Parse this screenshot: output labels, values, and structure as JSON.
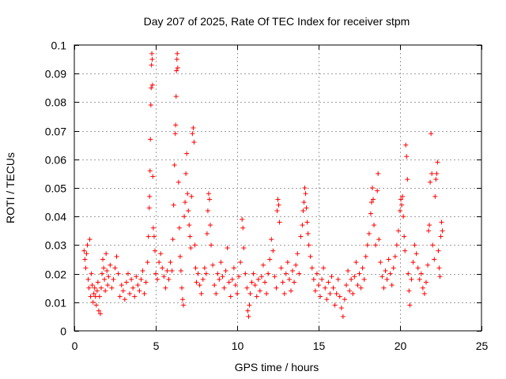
{
  "chart_data": {
    "type": "scatter",
    "title": "Day 207 of 2025, Rate Of TEC Index for receiver stpm",
    "xlabel": "GPS time / hours",
    "ylabel": "ROTI / TECUs",
    "xlim": [
      0,
      25
    ],
    "ylim": [
      0,
      0.1
    ],
    "x_ticks": [
      0,
      5,
      10,
      15,
      20,
      25
    ],
    "y_ticks": [
      0,
      0.01,
      0.02,
      0.03,
      0.04,
      0.05,
      0.06,
      0.07,
      0.08,
      0.09,
      0.1
    ],
    "x_tick_labels": [
      "0",
      "5",
      "10",
      "15",
      "20",
      "25"
    ],
    "y_tick_labels": [
      "0",
      "0.01",
      "0.02",
      "0.03",
      "0.04",
      "0.05",
      "0.06",
      "0.07",
      "0.08",
      "0.09",
      "0.1"
    ],
    "grid": true,
    "marker": "plus",
    "color": "#ff0000",
    "points": [
      [
        0.6,
        0.028
      ],
      [
        0.65,
        0.025
      ],
      [
        0.7,
        0.022
      ],
      [
        0.75,
        0.027
      ],
      [
        0.8,
        0.03
      ],
      [
        0.85,
        0.018
      ],
      [
        0.9,
        0.015
      ],
      [
        0.95,
        0.032
      ],
      [
        1.0,
        0.012
      ],
      [
        1.05,
        0.02
      ],
      [
        1.1,
        0.016
      ],
      [
        1.15,
        0.01
      ],
      [
        1.2,
        0.013
      ],
      [
        1.25,
        0.015
      ],
      [
        1.3,
        0.012
      ],
      [
        1.35,
        0.009
      ],
      [
        1.4,
        0.014
      ],
      [
        1.45,
        0.017
      ],
      [
        1.5,
        0.007
      ],
      [
        1.55,
        0.012
      ],
      [
        1.6,
        0.006
      ],
      [
        1.65,
        0.015
      ],
      [
        1.7,
        0.02
      ],
      [
        1.75,
        0.025
      ],
      [
        1.8,
        0.022
      ],
      [
        1.85,
        0.018
      ],
      [
        1.9,
        0.014
      ],
      [
        1.95,
        0.027
      ],
      [
        2.0,
        0.021
      ],
      [
        2.05,
        0.016
      ],
      [
        2.1,
        0.019
      ],
      [
        2.2,
        0.023
      ],
      [
        2.3,
        0.015
      ],
      [
        2.4,
        0.018
      ],
      [
        2.5,
        0.022
      ],
      [
        2.6,
        0.026
      ],
      [
        2.7,
        0.02
      ],
      [
        2.8,
        0.012
      ],
      [
        2.9,
        0.016
      ],
      [
        3.0,
        0.014
      ],
      [
        3.1,
        0.011
      ],
      [
        3.2,
        0.017
      ],
      [
        3.3,
        0.02
      ],
      [
        3.4,
        0.013
      ],
      [
        3.5,
        0.018
      ],
      [
        3.6,
        0.015
      ],
      [
        3.7,
        0.012
      ],
      [
        3.8,
        0.019
      ],
      [
        3.9,
        0.016
      ],
      [
        4.0,
        0.014
      ],
      [
        4.1,
        0.018
      ],
      [
        4.2,
        0.021
      ],
      [
        4.3,
        0.013
      ],
      [
        4.4,
        0.017
      ],
      [
        4.5,
        0.024
      ],
      [
        4.55,
        0.033
      ],
      [
        4.6,
        0.043
      ],
      [
        4.62,
        0.047
      ],
      [
        4.65,
        0.056
      ],
      [
        4.67,
        0.067
      ],
      [
        4.7,
        0.079
      ],
      [
        4.72,
        0.085
      ],
      [
        4.74,
        0.093
      ],
      [
        4.76,
        0.097
      ],
      [
        4.78,
        0.095
      ],
      [
        4.8,
        0.086
      ],
      [
        4.82,
        0.054
      ],
      [
        4.85,
        0.036
      ],
      [
        4.9,
        0.033
      ],
      [
        4.95,
        0.028
      ],
      [
        5.0,
        0.02
      ],
      [
        5.1,
        0.018
      ],
      [
        5.2,
        0.024
      ],
      [
        5.3,
        0.027
      ],
      [
        5.4,
        0.022
      ],
      [
        5.5,
        0.019
      ],
      [
        5.6,
        0.015
      ],
      [
        5.7,
        0.021
      ],
      [
        5.8,
        0.018
      ],
      [
        5.9,
        0.024
      ],
      [
        6.0,
        0.021
      ],
      [
        6.05,
        0.032
      ],
      [
        6.1,
        0.044
      ],
      [
        6.15,
        0.058
      ],
      [
        6.2,
        0.069
      ],
      [
        6.22,
        0.072
      ],
      [
        6.25,
        0.082
      ],
      [
        6.27,
        0.091
      ],
      [
        6.3,
        0.095
      ],
      [
        6.32,
        0.097
      ],
      [
        6.35,
        0.092
      ],
      [
        6.4,
        0.052
      ],
      [
        6.45,
        0.036
      ],
      [
        6.5,
        0.026
      ],
      [
        6.55,
        0.021
      ],
      [
        6.6,
        0.015
      ],
      [
        6.65,
        0.011
      ],
      [
        6.7,
        0.009
      ],
      [
        6.75,
        0.04
      ],
      [
        6.8,
        0.045
      ],
      [
        6.85,
        0.055
      ],
      [
        6.9,
        0.062
      ],
      [
        6.95,
        0.048
      ],
      [
        7.0,
        0.042
      ],
      [
        7.05,
        0.037
      ],
      [
        7.1,
        0.033
      ],
      [
        7.15,
        0.029
      ],
      [
        7.2,
        0.047
      ],
      [
        7.25,
        0.069
      ],
      [
        7.3,
        0.071
      ],
      [
        7.35,
        0.066
      ],
      [
        7.4,
        0.03
      ],
      [
        7.45,
        0.022
      ],
      [
        7.5,
        0.017
      ],
      [
        7.6,
        0.02
      ],
      [
        7.7,
        0.016
      ],
      [
        7.8,
        0.013
      ],
      [
        7.9,
        0.018
      ],
      [
        8.0,
        0.022
      ],
      [
        8.1,
        0.02
      ],
      [
        8.15,
        0.034
      ],
      [
        8.2,
        0.042
      ],
      [
        8.25,
        0.048
      ],
      [
        8.3,
        0.046
      ],
      [
        8.35,
        0.037
      ],
      [
        8.4,
        0.03
      ],
      [
        8.5,
        0.023
      ],
      [
        8.6,
        0.016
      ],
      [
        8.7,
        0.013
      ],
      [
        8.8,
        0.02
      ],
      [
        8.9,
        0.018
      ],
      [
        9.0,
        0.024
      ],
      [
        9.1,
        0.019
      ],
      [
        9.2,
        0.015
      ],
      [
        9.3,
        0.021
      ],
      [
        9.4,
        0.029
      ],
      [
        9.5,
        0.017
      ],
      [
        9.6,
        0.012
      ],
      [
        9.7,
        0.018
      ],
      [
        9.8,
        0.022
      ],
      [
        9.9,
        0.016
      ],
      [
        10.0,
        0.013
      ],
      [
        10.1,
        0.019
      ],
      [
        10.2,
        0.024
      ],
      [
        10.3,
        0.039
      ],
      [
        10.35,
        0.036
      ],
      [
        10.4,
        0.029
      ],
      [
        10.5,
        0.02
      ],
      [
        10.6,
        0.015
      ],
      [
        10.65,
        0.007
      ],
      [
        10.7,
        0.005
      ],
      [
        10.75,
        0.009
      ],
      [
        10.8,
        0.013
      ],
      [
        10.9,
        0.017
      ],
      [
        11.0,
        0.02
      ],
      [
        11.1,
        0.016
      ],
      [
        11.2,
        0.012
      ],
      [
        11.3,
        0.018
      ],
      [
        11.4,
        0.014
      ],
      [
        11.5,
        0.019
      ],
      [
        11.6,
        0.023
      ],
      [
        11.7,
        0.017
      ],
      [
        11.8,
        0.013
      ],
      [
        11.9,
        0.02
      ],
      [
        12.0,
        0.025
      ],
      [
        12.1,
        0.032
      ],
      [
        12.2,
        0.028
      ],
      [
        12.3,
        0.019
      ],
      [
        12.4,
        0.015
      ],
      [
        12.45,
        0.042
      ],
      [
        12.5,
        0.046
      ],
      [
        12.55,
        0.044
      ],
      [
        12.6,
        0.038
      ],
      [
        12.7,
        0.022
      ],
      [
        12.8,
        0.017
      ],
      [
        12.9,
        0.013
      ],
      [
        13.0,
        0.02
      ],
      [
        13.1,
        0.024
      ],
      [
        13.2,
        0.018
      ],
      [
        13.3,
        0.014
      ],
      [
        13.4,
        0.021
      ],
      [
        13.5,
        0.017
      ],
      [
        13.6,
        0.023
      ],
      [
        13.7,
        0.027
      ],
      [
        13.8,
        0.02
      ],
      [
        13.9,
        0.033
      ],
      [
        14.0,
        0.037
      ],
      [
        14.05,
        0.042
      ],
      [
        14.1,
        0.045
      ],
      [
        14.15,
        0.05
      ],
      [
        14.2,
        0.048
      ],
      [
        14.25,
        0.043
      ],
      [
        14.3,
        0.038
      ],
      [
        14.35,
        0.034
      ],
      [
        14.4,
        0.03
      ],
      [
        14.5,
        0.026
      ],
      [
        14.6,
        0.022
      ],
      [
        14.7,
        0.018
      ],
      [
        14.8,
        0.014
      ],
      [
        14.9,
        0.02
      ],
      [
        15.0,
        0.016
      ],
      [
        15.1,
        0.012
      ],
      [
        15.2,
        0.018
      ],
      [
        15.3,
        0.022
      ],
      [
        15.4,
        0.015
      ],
      [
        15.5,
        0.011
      ],
      [
        15.6,
        0.017
      ],
      [
        15.7,
        0.013
      ],
      [
        15.8,
        0.019
      ],
      [
        15.9,
        0.015
      ],
      [
        16.0,
        0.009
      ],
      [
        16.1,
        0.013
      ],
      [
        16.2,
        0.018
      ],
      [
        16.3,
        0.012
      ],
      [
        16.4,
        0.008
      ],
      [
        16.5,
        0.005
      ],
      [
        16.6,
        0.011
      ],
      [
        16.7,
        0.016
      ],
      [
        16.8,
        0.021
      ],
      [
        16.9,
        0.014
      ],
      [
        17.0,
        0.018
      ],
      [
        17.1,
        0.013
      ],
      [
        17.2,
        0.019
      ],
      [
        17.3,
        0.024
      ],
      [
        17.4,
        0.016
      ],
      [
        17.5,
        0.02
      ],
      [
        17.6,
        0.015
      ],
      [
        17.7,
        0.022
      ],
      [
        17.8,
        0.018
      ],
      [
        17.9,
        0.026
      ],
      [
        18.0,
        0.03
      ],
      [
        18.1,
        0.034
      ],
      [
        18.2,
        0.041
      ],
      [
        18.25,
        0.045
      ],
      [
        18.3,
        0.05
      ],
      [
        18.35,
        0.046
      ],
      [
        18.4,
        0.037
      ],
      [
        18.5,
        0.03
      ],
      [
        18.6,
        0.049
      ],
      [
        18.65,
        0.055
      ],
      [
        18.7,
        0.032
      ],
      [
        18.8,
        0.024
      ],
      [
        18.9,
        0.019
      ],
      [
        19.0,
        0.015
      ],
      [
        19.1,
        0.021
      ],
      [
        19.2,
        0.018
      ],
      [
        19.3,
        0.025
      ],
      [
        19.4,
        0.02
      ],
      [
        19.5,
        0.016
      ],
      [
        19.6,
        0.022
      ],
      [
        19.7,
        0.026
      ],
      [
        19.8,
        0.03
      ],
      [
        19.9,
        0.035
      ],
      [
        20.0,
        0.042
      ],
      [
        20.05,
        0.046
      ],
      [
        20.1,
        0.044
      ],
      [
        20.15,
        0.047
      ],
      [
        20.2,
        0.04
      ],
      [
        20.25,
        0.033
      ],
      [
        20.3,
        0.028
      ],
      [
        20.35,
        0.065
      ],
      [
        20.4,
        0.061
      ],
      [
        20.45,
        0.053
      ],
      [
        20.5,
        0.02
      ],
      [
        20.55,
        0.014
      ],
      [
        20.6,
        0.009
      ],
      [
        20.7,
        0.018
      ],
      [
        20.8,
        0.024
      ],
      [
        20.9,
        0.03
      ],
      [
        21.0,
        0.027
      ],
      [
        21.1,
        0.022
      ],
      [
        21.2,
        0.018
      ],
      [
        21.3,
        0.02
      ],
      [
        21.4,
        0.015
      ],
      [
        21.5,
        0.013
      ],
      [
        21.6,
        0.017
      ],
      [
        21.7,
        0.023
      ],
      [
        21.75,
        0.035
      ],
      [
        21.8,
        0.037
      ],
      [
        21.85,
        0.052
      ],
      [
        21.9,
        0.069
      ],
      [
        21.95,
        0.055
      ],
      [
        22.0,
        0.03
      ],
      [
        22.1,
        0.025
      ],
      [
        22.15,
        0.047
      ],
      [
        22.2,
        0.053
      ],
      [
        22.25,
        0.055
      ],
      [
        22.3,
        0.059
      ],
      [
        22.35,
        0.028
      ],
      [
        22.4,
        0.022
      ],
      [
        22.45,
        0.019
      ],
      [
        22.5,
        0.033
      ],
      [
        22.55,
        0.038
      ],
      [
        22.6,
        0.035
      ]
    ]
  }
}
